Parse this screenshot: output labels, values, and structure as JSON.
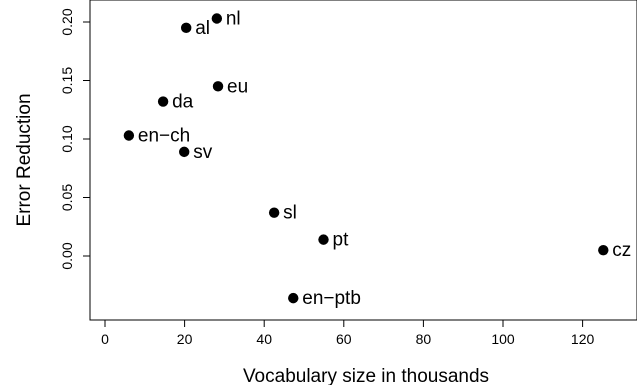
{
  "chart_data": {
    "type": "scatter",
    "xlabel": "Vocabulary size in thousands",
    "ylabel": "Error Reduction",
    "xlim": [
      -6,
      133
    ],
    "ylim": [
      -0.04,
      0.21
    ],
    "x_ticks": [
      0,
      20,
      40,
      60,
      80,
      100,
      120
    ],
    "y_ticks": [
      0.0,
      0.05,
      0.1,
      0.15,
      0.2
    ],
    "x_tick_labels": [
      "0",
      "20",
      "40",
      "60",
      "80",
      "100",
      "120"
    ],
    "y_tick_labels": [
      "0.00",
      "0.05",
      "0.10",
      "0.15",
      "0.20"
    ],
    "grid": false,
    "legend": "none",
    "marker_color": "#000000",
    "points": [
      {
        "label": "nl",
        "x": 28.1,
        "y": 0.203
      },
      {
        "label": "al",
        "x": 20.4,
        "y": 0.195
      },
      {
        "label": "eu",
        "x": 28.4,
        "y": 0.145
      },
      {
        "label": "da",
        "x": 14.6,
        "y": 0.132
      },
      {
        "label": "en−ch",
        "x": 6.0,
        "y": 0.103
      },
      {
        "label": "sv",
        "x": 19.9,
        "y": 0.089
      },
      {
        "label": "sl",
        "x": 42.5,
        "y": 0.037
      },
      {
        "label": "pt",
        "x": 54.9,
        "y": 0.014
      },
      {
        "label": "cz",
        "x": 125.2,
        "y": 0.005
      },
      {
        "label": "en−ptb",
        "x": 47.3,
        "y": -0.036
      }
    ]
  }
}
